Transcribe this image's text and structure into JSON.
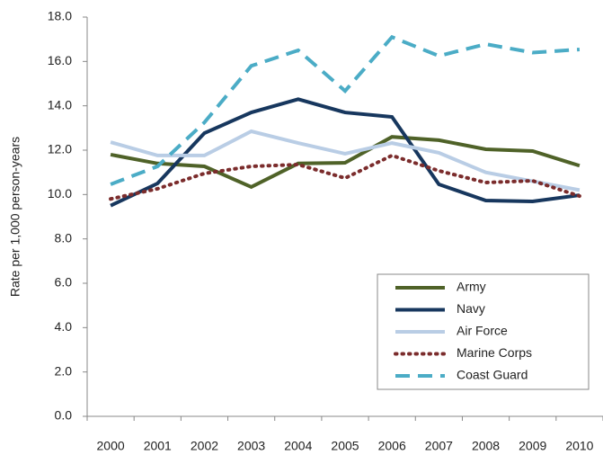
{
  "chart_data": {
    "type": "line",
    "y_axis_label": "Rate per 1,000 person-years",
    "categories": [
      "2000",
      "2001",
      "2002",
      "2003",
      "2004",
      "2005",
      "2006",
      "2007",
      "2008",
      "2009",
      "2010"
    ],
    "series": [
      {
        "name": "Army",
        "color": "#4f6228",
        "dash": "solid",
        "values": [
          11.8,
          11.4,
          11.27,
          10.34,
          11.4,
          11.43,
          12.6,
          12.45,
          12.04,
          11.96,
          11.3
        ]
      },
      {
        "name": "Navy",
        "color": "#17375e",
        "dash": "solid",
        "values": [
          9.5,
          10.5,
          12.77,
          13.7,
          14.3,
          13.7,
          13.5,
          10.46,
          9.73,
          9.69,
          9.97
        ]
      },
      {
        "name": "Air Force",
        "color": "#b9cde5",
        "dash": "solid",
        "values": [
          12.36,
          11.76,
          11.76,
          12.85,
          12.32,
          11.84,
          12.32,
          11.88,
          11.0,
          10.6,
          10.2
        ]
      },
      {
        "name": "Marine Corps",
        "color": "#7b2c2c",
        "dash": "dotted",
        "values": [
          9.8,
          10.26,
          10.95,
          11.27,
          11.35,
          10.74,
          11.76,
          11.07,
          10.54,
          10.62,
          9.93
        ]
      },
      {
        "name": "Coast Guard",
        "color": "#4bacc6",
        "dash": "dashed",
        "values": [
          10.46,
          11.27,
          13.25,
          15.8,
          16.5,
          14.67,
          17.1,
          16.25,
          16.78,
          16.4,
          16.54
        ]
      }
    ],
    "ylim": [
      0,
      18
    ],
    "yticks": [
      {
        "value": 0,
        "label": "0.0"
      },
      {
        "value": 2,
        "label": "2.0"
      },
      {
        "value": 4,
        "label": "4.0"
      },
      {
        "value": 6,
        "label": "6.0"
      },
      {
        "value": 8,
        "label": "8.0"
      },
      {
        "value": 10,
        "label": "10.0"
      },
      {
        "value": 12,
        "label": "12.0"
      },
      {
        "value": 14,
        "label": "14.0"
      },
      {
        "value": 16,
        "label": "16.0"
      },
      {
        "value": 18,
        "label": "18.0"
      }
    ],
    "grid": false,
    "legend": "lower right"
  }
}
